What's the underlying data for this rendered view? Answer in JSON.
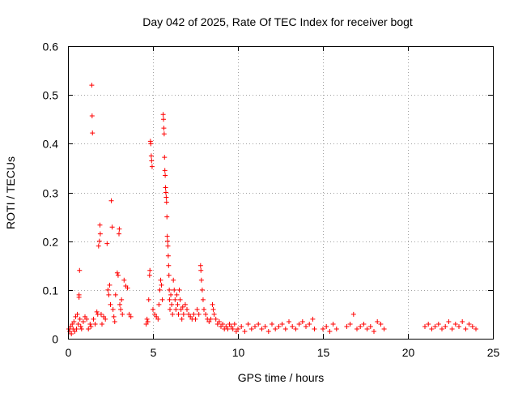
{
  "chart_data": {
    "type": "scatter",
    "title": "Day 042 of 2025, Rate Of TEC Index for receiver bogt",
    "xlabel": "GPS time / hours",
    "ylabel": "ROTI / TECUs",
    "xlim": [
      0,
      25
    ],
    "ylim": [
      0,
      0.6
    ],
    "xticks": [
      0,
      5,
      10,
      15,
      20,
      25
    ],
    "xtick_labels": [
      "0",
      "5",
      "10",
      "15",
      "20",
      "25"
    ],
    "yticks": [
      0,
      0.1,
      0.2,
      0.3,
      0.4,
      0.5,
      0.6
    ],
    "ytick_labels": [
      "0",
      "0.1",
      "0.2",
      "0.3",
      "0.4",
      "0.5",
      "0.6"
    ],
    "grid": true,
    "marker": "+",
    "color": "#ff0000",
    "series": [
      {
        "name": "ROTI",
        "points": [
          [
            0.05,
            0.02
          ],
          [
            0.1,
            0.015
          ],
          [
            0.15,
            0.025
          ],
          [
            0.2,
            0.01
          ],
          [
            0.25,
            0.03
          ],
          [
            0.3,
            0.02
          ],
          [
            0.35,
            0.035
          ],
          [
            0.4,
            0.015
          ],
          [
            0.45,
            0.045
          ],
          [
            0.5,
            0.02
          ],
          [
            0.55,
            0.05
          ],
          [
            0.6,
            0.03
          ],
          [
            0.65,
            0.085
          ],
          [
            0.65,
            0.09
          ],
          [
            0.68,
            0.14
          ],
          [
            0.7,
            0.04
          ],
          [
            0.75,
            0.025
          ],
          [
            0.8,
            0.02
          ],
          [
            0.9,
            0.035
          ],
          [
            1.0,
            0.045
          ],
          [
            1.1,
            0.04
          ],
          [
            1.2,
            0.02
          ],
          [
            1.3,
            0.03
          ],
          [
            1.35,
            0.025
          ],
          [
            1.4,
            0.52
          ],
          [
            1.42,
            0.457
          ],
          [
            1.44,
            0.422
          ],
          [
            1.5,
            0.04
          ],
          [
            1.6,
            0.03
          ],
          [
            1.7,
            0.055
          ],
          [
            1.75,
            0.05
          ],
          [
            1.8,
            0.19
          ],
          [
            1.85,
            0.2
          ],
          [
            1.88,
            0.233
          ],
          [
            1.9,
            0.215
          ],
          [
            1.95,
            0.05
          ],
          [
            2.0,
            0.03
          ],
          [
            2.1,
            0.045
          ],
          [
            2.2,
            0.04
          ],
          [
            2.3,
            0.195
          ],
          [
            2.35,
            0.1
          ],
          [
            2.4,
            0.09
          ],
          [
            2.45,
            0.11
          ],
          [
            2.5,
            0.07
          ],
          [
            2.55,
            0.283
          ],
          [
            2.6,
            0.229
          ],
          [
            2.65,
            0.06
          ],
          [
            2.7,
            0.045
          ],
          [
            2.75,
            0.035
          ],
          [
            2.8,
            0.09
          ],
          [
            2.9,
            0.135
          ],
          [
            2.95,
            0.13
          ],
          [
            3.0,
            0.215
          ],
          [
            3.02,
            0.225
          ],
          [
            3.05,
            0.07
          ],
          [
            3.1,
            0.06
          ],
          [
            3.15,
            0.08
          ],
          [
            3.2,
            0.05
          ],
          [
            3.3,
            0.12
          ],
          [
            3.4,
            0.108
          ],
          [
            3.5,
            0.104
          ],
          [
            3.6,
            0.05
          ],
          [
            3.7,
            0.045
          ],
          [
            4.6,
            0.03
          ],
          [
            4.65,
            0.04
          ],
          [
            4.7,
            0.035
          ],
          [
            4.75,
            0.08
          ],
          [
            4.8,
            0.13
          ],
          [
            4.82,
            0.14
          ],
          [
            4.85,
            0.405
          ],
          [
            4.87,
            0.4
          ],
          [
            4.9,
            0.375
          ],
          [
            4.92,
            0.365
          ],
          [
            4.95,
            0.353
          ],
          [
            5.0,
            0.06
          ],
          [
            5.1,
            0.05
          ],
          [
            5.2,
            0.045
          ],
          [
            5.3,
            0.04
          ],
          [
            5.35,
            0.07
          ],
          [
            5.4,
            0.1
          ],
          [
            5.45,
            0.12
          ],
          [
            5.5,
            0.11
          ],
          [
            5.55,
            0.08
          ],
          [
            5.6,
            0.46
          ],
          [
            5.62,
            0.45
          ],
          [
            5.64,
            0.432
          ],
          [
            5.66,
            0.42
          ],
          [
            5.68,
            0.372
          ],
          [
            5.7,
            0.345
          ],
          [
            5.72,
            0.335
          ],
          [
            5.74,
            0.31
          ],
          [
            5.76,
            0.3
          ],
          [
            5.78,
            0.29
          ],
          [
            5.8,
            0.28
          ],
          [
            5.82,
            0.25
          ],
          [
            5.84,
            0.21
          ],
          [
            5.86,
            0.2
          ],
          [
            5.88,
            0.19
          ],
          [
            5.9,
            0.17
          ],
          [
            5.92,
            0.15
          ],
          [
            5.94,
            0.13
          ],
          [
            5.96,
            0.1
          ],
          [
            5.98,
            0.08
          ],
          [
            6.0,
            0.06
          ],
          [
            6.05,
            0.09
          ],
          [
            6.1,
            0.07
          ],
          [
            6.15,
            0.05
          ],
          [
            6.2,
            0.12
          ],
          [
            6.25,
            0.1
          ],
          [
            6.3,
            0.08
          ],
          [
            6.35,
            0.06
          ],
          [
            6.4,
            0.09
          ],
          [
            6.45,
            0.07
          ],
          [
            6.5,
            0.05
          ],
          [
            6.55,
            0.1
          ],
          [
            6.6,
            0.08
          ],
          [
            6.65,
            0.06
          ],
          [
            6.7,
            0.04
          ],
          [
            6.75,
            0.065
          ],
          [
            6.8,
            0.05
          ],
          [
            6.9,
            0.07
          ],
          [
            7.0,
            0.06
          ],
          [
            7.1,
            0.05
          ],
          [
            7.2,
            0.045
          ],
          [
            7.3,
            0.04
          ],
          [
            7.4,
            0.05
          ],
          [
            7.5,
            0.04
          ],
          [
            7.6,
            0.06
          ],
          [
            7.7,
            0.05
          ],
          [
            7.8,
            0.15
          ],
          [
            7.82,
            0.14
          ],
          [
            7.85,
            0.12
          ],
          [
            7.9,
            0.1
          ],
          [
            7.95,
            0.08
          ],
          [
            8.0,
            0.06
          ],
          [
            8.1,
            0.05
          ],
          [
            8.2,
            0.04
          ],
          [
            8.3,
            0.035
          ],
          [
            8.4,
            0.04
          ],
          [
            8.5,
            0.07
          ],
          [
            8.55,
            0.06
          ],
          [
            8.6,
            0.05
          ],
          [
            8.7,
            0.04
          ],
          [
            8.8,
            0.03
          ],
          [
            8.9,
            0.035
          ],
          [
            9.0,
            0.025
          ],
          [
            9.1,
            0.03
          ],
          [
            9.2,
            0.02
          ],
          [
            9.3,
            0.025
          ],
          [
            9.4,
            0.02
          ],
          [
            9.5,
            0.03
          ],
          [
            9.6,
            0.025
          ],
          [
            9.7,
            0.02
          ],
          [
            9.8,
            0.03
          ],
          [
            9.9,
            0.015
          ],
          [
            10.0,
            0.02
          ],
          [
            10.2,
            0.025
          ],
          [
            10.4,
            0.015
          ],
          [
            10.6,
            0.03
          ],
          [
            10.8,
            0.02
          ],
          [
            11.0,
            0.025
          ],
          [
            11.2,
            0.03
          ],
          [
            11.4,
            0.02
          ],
          [
            11.6,
            0.025
          ],
          [
            11.8,
            0.015
          ],
          [
            12.0,
            0.03
          ],
          [
            12.2,
            0.02
          ],
          [
            12.4,
            0.025
          ],
          [
            12.6,
            0.03
          ],
          [
            12.8,
            0.02
          ],
          [
            13.0,
            0.035
          ],
          [
            13.2,
            0.025
          ],
          [
            13.4,
            0.02
          ],
          [
            13.6,
            0.03
          ],
          [
            13.8,
            0.035
          ],
          [
            14.0,
            0.025
          ],
          [
            14.2,
            0.03
          ],
          [
            14.4,
            0.04
          ],
          [
            14.5,
            0.02
          ],
          [
            15.0,
            0.02
          ],
          [
            15.2,
            0.025
          ],
          [
            15.4,
            0.015
          ],
          [
            15.6,
            0.03
          ],
          [
            15.8,
            0.02
          ],
          [
            16.4,
            0.025
          ],
          [
            16.6,
            0.03
          ],
          [
            16.8,
            0.05
          ],
          [
            17.0,
            0.02
          ],
          [
            17.2,
            0.025
          ],
          [
            17.4,
            0.03
          ],
          [
            17.6,
            0.02
          ],
          [
            17.8,
            0.025
          ],
          [
            18.0,
            0.015
          ],
          [
            18.2,
            0.035
          ],
          [
            18.4,
            0.03
          ],
          [
            18.6,
            0.02
          ],
          [
            21.0,
            0.025
          ],
          [
            21.2,
            0.03
          ],
          [
            21.4,
            0.02
          ],
          [
            21.6,
            0.025
          ],
          [
            21.8,
            0.03
          ],
          [
            22.0,
            0.02
          ],
          [
            22.2,
            0.025
          ],
          [
            22.4,
            0.035
          ],
          [
            22.6,
            0.02
          ],
          [
            22.8,
            0.03
          ],
          [
            23.0,
            0.025
          ],
          [
            23.2,
            0.035
          ],
          [
            23.4,
            0.02
          ],
          [
            23.6,
            0.03
          ],
          [
            23.8,
            0.025
          ],
          [
            24.0,
            0.02
          ]
        ]
      }
    ]
  }
}
